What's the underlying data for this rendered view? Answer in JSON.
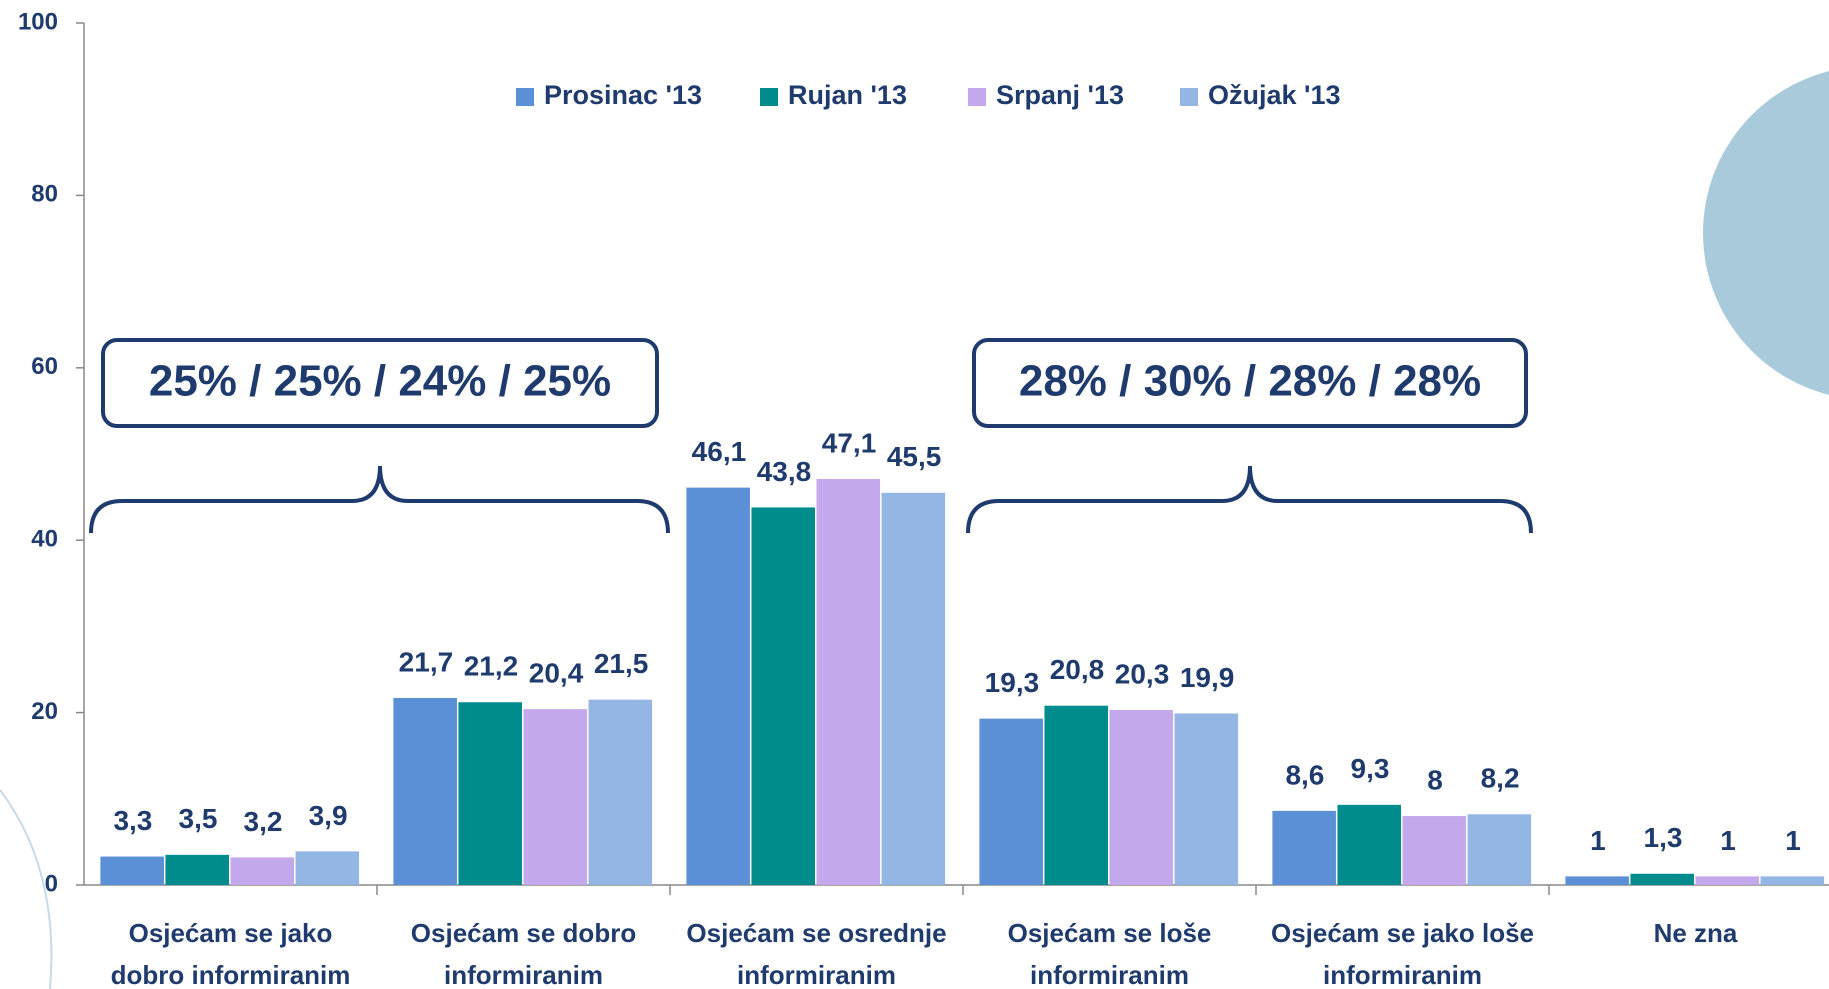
{
  "chart_data": {
    "type": "bar",
    "categories": [
      "Osjećam se jako dobro informiranim",
      "Osjećam se dobro informiranim",
      "Osjećam se osrednje informiranim",
      "Osjećam se loše informiranim",
      "Osjećam se jako loše informiranim",
      "Ne zna"
    ],
    "series": [
      {
        "name": "Prosinac '13",
        "color": "#5b8fd6",
        "values": [
          3.3,
          21.7,
          46.1,
          19.3,
          8.6,
          1
        ],
        "value_labels": [
          "3,3",
          "21,7",
          "46,1",
          "19,3",
          "8,6",
          "1"
        ]
      },
      {
        "name": "Rujan '13",
        "color": "#008c8c",
        "values": [
          3.5,
          21.2,
          43.8,
          20.8,
          9.3,
          1.3
        ],
        "value_labels": [
          "3,5",
          "21,2",
          "43,8",
          "20,8",
          "9,3",
          "1,3"
        ]
      },
      {
        "name": "Srpanj '13",
        "color": "#c3a9ec",
        "values": [
          3.2,
          20.4,
          47.1,
          20.3,
          8,
          1
        ],
        "value_labels": [
          "3,2",
          "20,4",
          "47,1",
          "20,3",
          "8",
          "1"
        ]
      },
      {
        "name": "Ožujak '13",
        "color": "#93b6e4",
        "values": [
          3.9,
          21.5,
          45.5,
          19.9,
          8.2,
          1
        ],
        "value_labels": [
          "3,9",
          "21,5",
          "45,5",
          "19,9",
          "8,2",
          "1"
        ]
      }
    ],
    "annotations": [
      "25% / 25% / 24% / 25%",
      "28% / 30% / 28% / 28%"
    ],
    "ylim": [
      0,
      100
    ],
    "yticks": [
      0,
      20,
      40,
      60,
      80,
      100
    ],
    "grid": false,
    "legend": "top"
  }
}
